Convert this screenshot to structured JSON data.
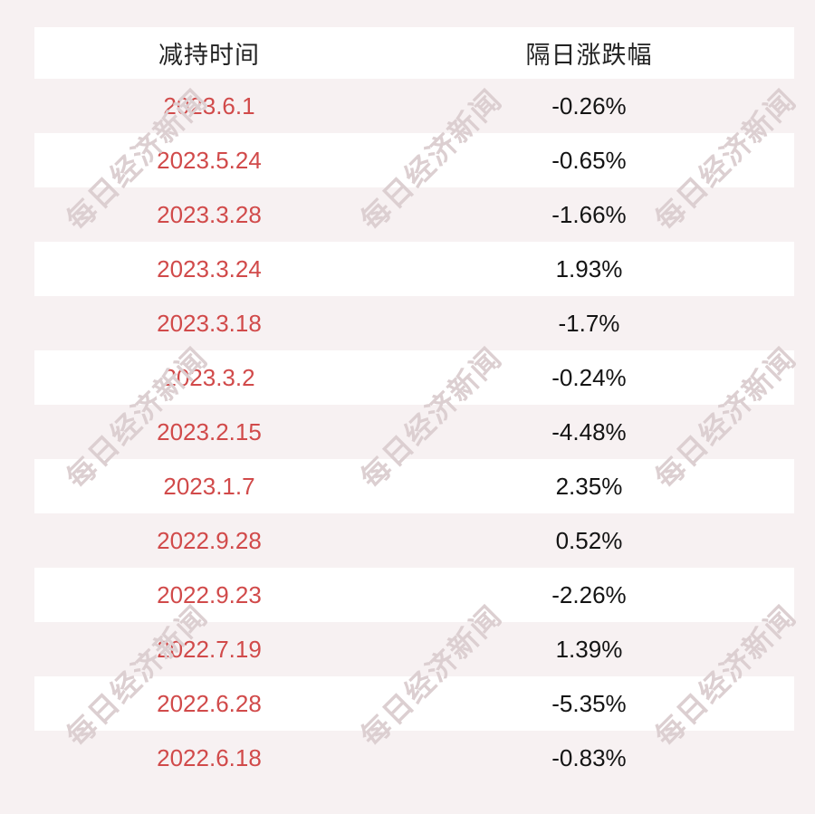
{
  "table": {
    "header": {
      "col1": "减持时间",
      "col2": "隔日涨跌幅"
    },
    "rows": [
      {
        "date": "2023.6.1",
        "change": "-0.26%"
      },
      {
        "date": "2023.5.24",
        "change": "-0.65%"
      },
      {
        "date": "2023.3.28",
        "change": "-1.66%"
      },
      {
        "date": "2023.3.24",
        "change": "1.93%"
      },
      {
        "date": "2023.3.18",
        "change": "-1.7%"
      },
      {
        "date": "2023.3.2",
        "change": "-0.24%"
      },
      {
        "date": "2023.2.15",
        "change": "-4.48%"
      },
      {
        "date": "2023.1.7",
        "change": "2.35%"
      },
      {
        "date": "2022.9.28",
        "change": "0.52%"
      },
      {
        "date": "2022.9.23",
        "change": "-2.26%"
      },
      {
        "date": "2022.7.19",
        "change": "1.39%"
      },
      {
        "date": "2022.6.28",
        "change": "-5.35%"
      },
      {
        "date": "2022.6.18",
        "change": "-0.83%"
      }
    ]
  },
  "watermark": {
    "text": "每日经济新闻"
  },
  "colors": {
    "bg": "#f7f1f2",
    "row-white": "#ffffff",
    "date-red": "#d14a4a",
    "value-text": "#141414",
    "header-text": "#222222",
    "watermark": "#dccfd1"
  },
  "chart_data": {
    "type": "table",
    "title": "",
    "columns": [
      "减持时间",
      "隔日涨跌幅"
    ],
    "rows": [
      [
        "2023.6.1",
        "-0.26%"
      ],
      [
        "2023.5.24",
        "-0.65%"
      ],
      [
        "2023.3.28",
        "-1.66%"
      ],
      [
        "2023.3.24",
        "1.93%"
      ],
      [
        "2023.3.18",
        "-1.7%"
      ],
      [
        "2023.3.2",
        "-0.24%"
      ],
      [
        "2023.2.15",
        "-4.48%"
      ],
      [
        "2023.1.7",
        "2.35%"
      ],
      [
        "2022.9.28",
        "0.52%"
      ],
      [
        "2022.9.23",
        "-2.26%"
      ],
      [
        "2022.7.19",
        "1.39%"
      ],
      [
        "2022.6.28",
        "-5.35%"
      ],
      [
        "2022.6.18",
        "-0.83%"
      ]
    ]
  }
}
